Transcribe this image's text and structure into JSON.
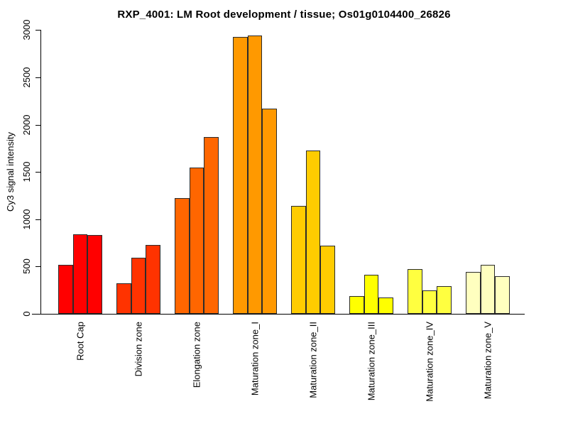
{
  "chart_data": {
    "type": "bar",
    "title": "RXP_4001: LM Root development / tissue; Os01g0104400_26826",
    "xlabel": "",
    "ylabel": "Cy3 signal intensity",
    "ylim": [
      0,
      3000
    ],
    "y_ticks": [
      0,
      500,
      1000,
      1500,
      2000,
      2500,
      3000
    ],
    "grid": false,
    "legend_position": "none",
    "bars_per_category": 3,
    "categories": [
      "Root Cap",
      "Division zone",
      "Elongation zone",
      "Maturation zone_I",
      "Maturation zone_II",
      "Maturation zone_III",
      "Maturation zone_IV",
      "Maturation zone_V"
    ],
    "groups": [
      {
        "label": "Root Cap",
        "color": "#FF0000",
        "values": [
          520,
          840,
          835
        ]
      },
      {
        "label": "Division zone",
        "color": "#FF3300",
        "values": [
          325,
          590,
          730
        ]
      },
      {
        "label": "Elongation zone",
        "color": "#FF6600",
        "values": [
          1225,
          1550,
          1870
        ]
      },
      {
        "label": "Maturation zone_I",
        "color": "#FF9900",
        "values": [
          2925,
          2940,
          2170
        ]
      },
      {
        "label": "Maturation zone_II",
        "color": "#FFCC00",
        "values": [
          1140,
          1730,
          720
        ]
      },
      {
        "label": "Maturation zone_III",
        "color": "#FFFF00",
        "values": [
          185,
          415,
          175
        ]
      },
      {
        "label": "Maturation zone_IV",
        "color": "#FFFF40",
        "values": [
          475,
          245,
          295
        ]
      },
      {
        "label": "Maturation zone_V",
        "color": "#FFFFBF",
        "values": [
          440,
          520,
          395
        ]
      }
    ]
  }
}
